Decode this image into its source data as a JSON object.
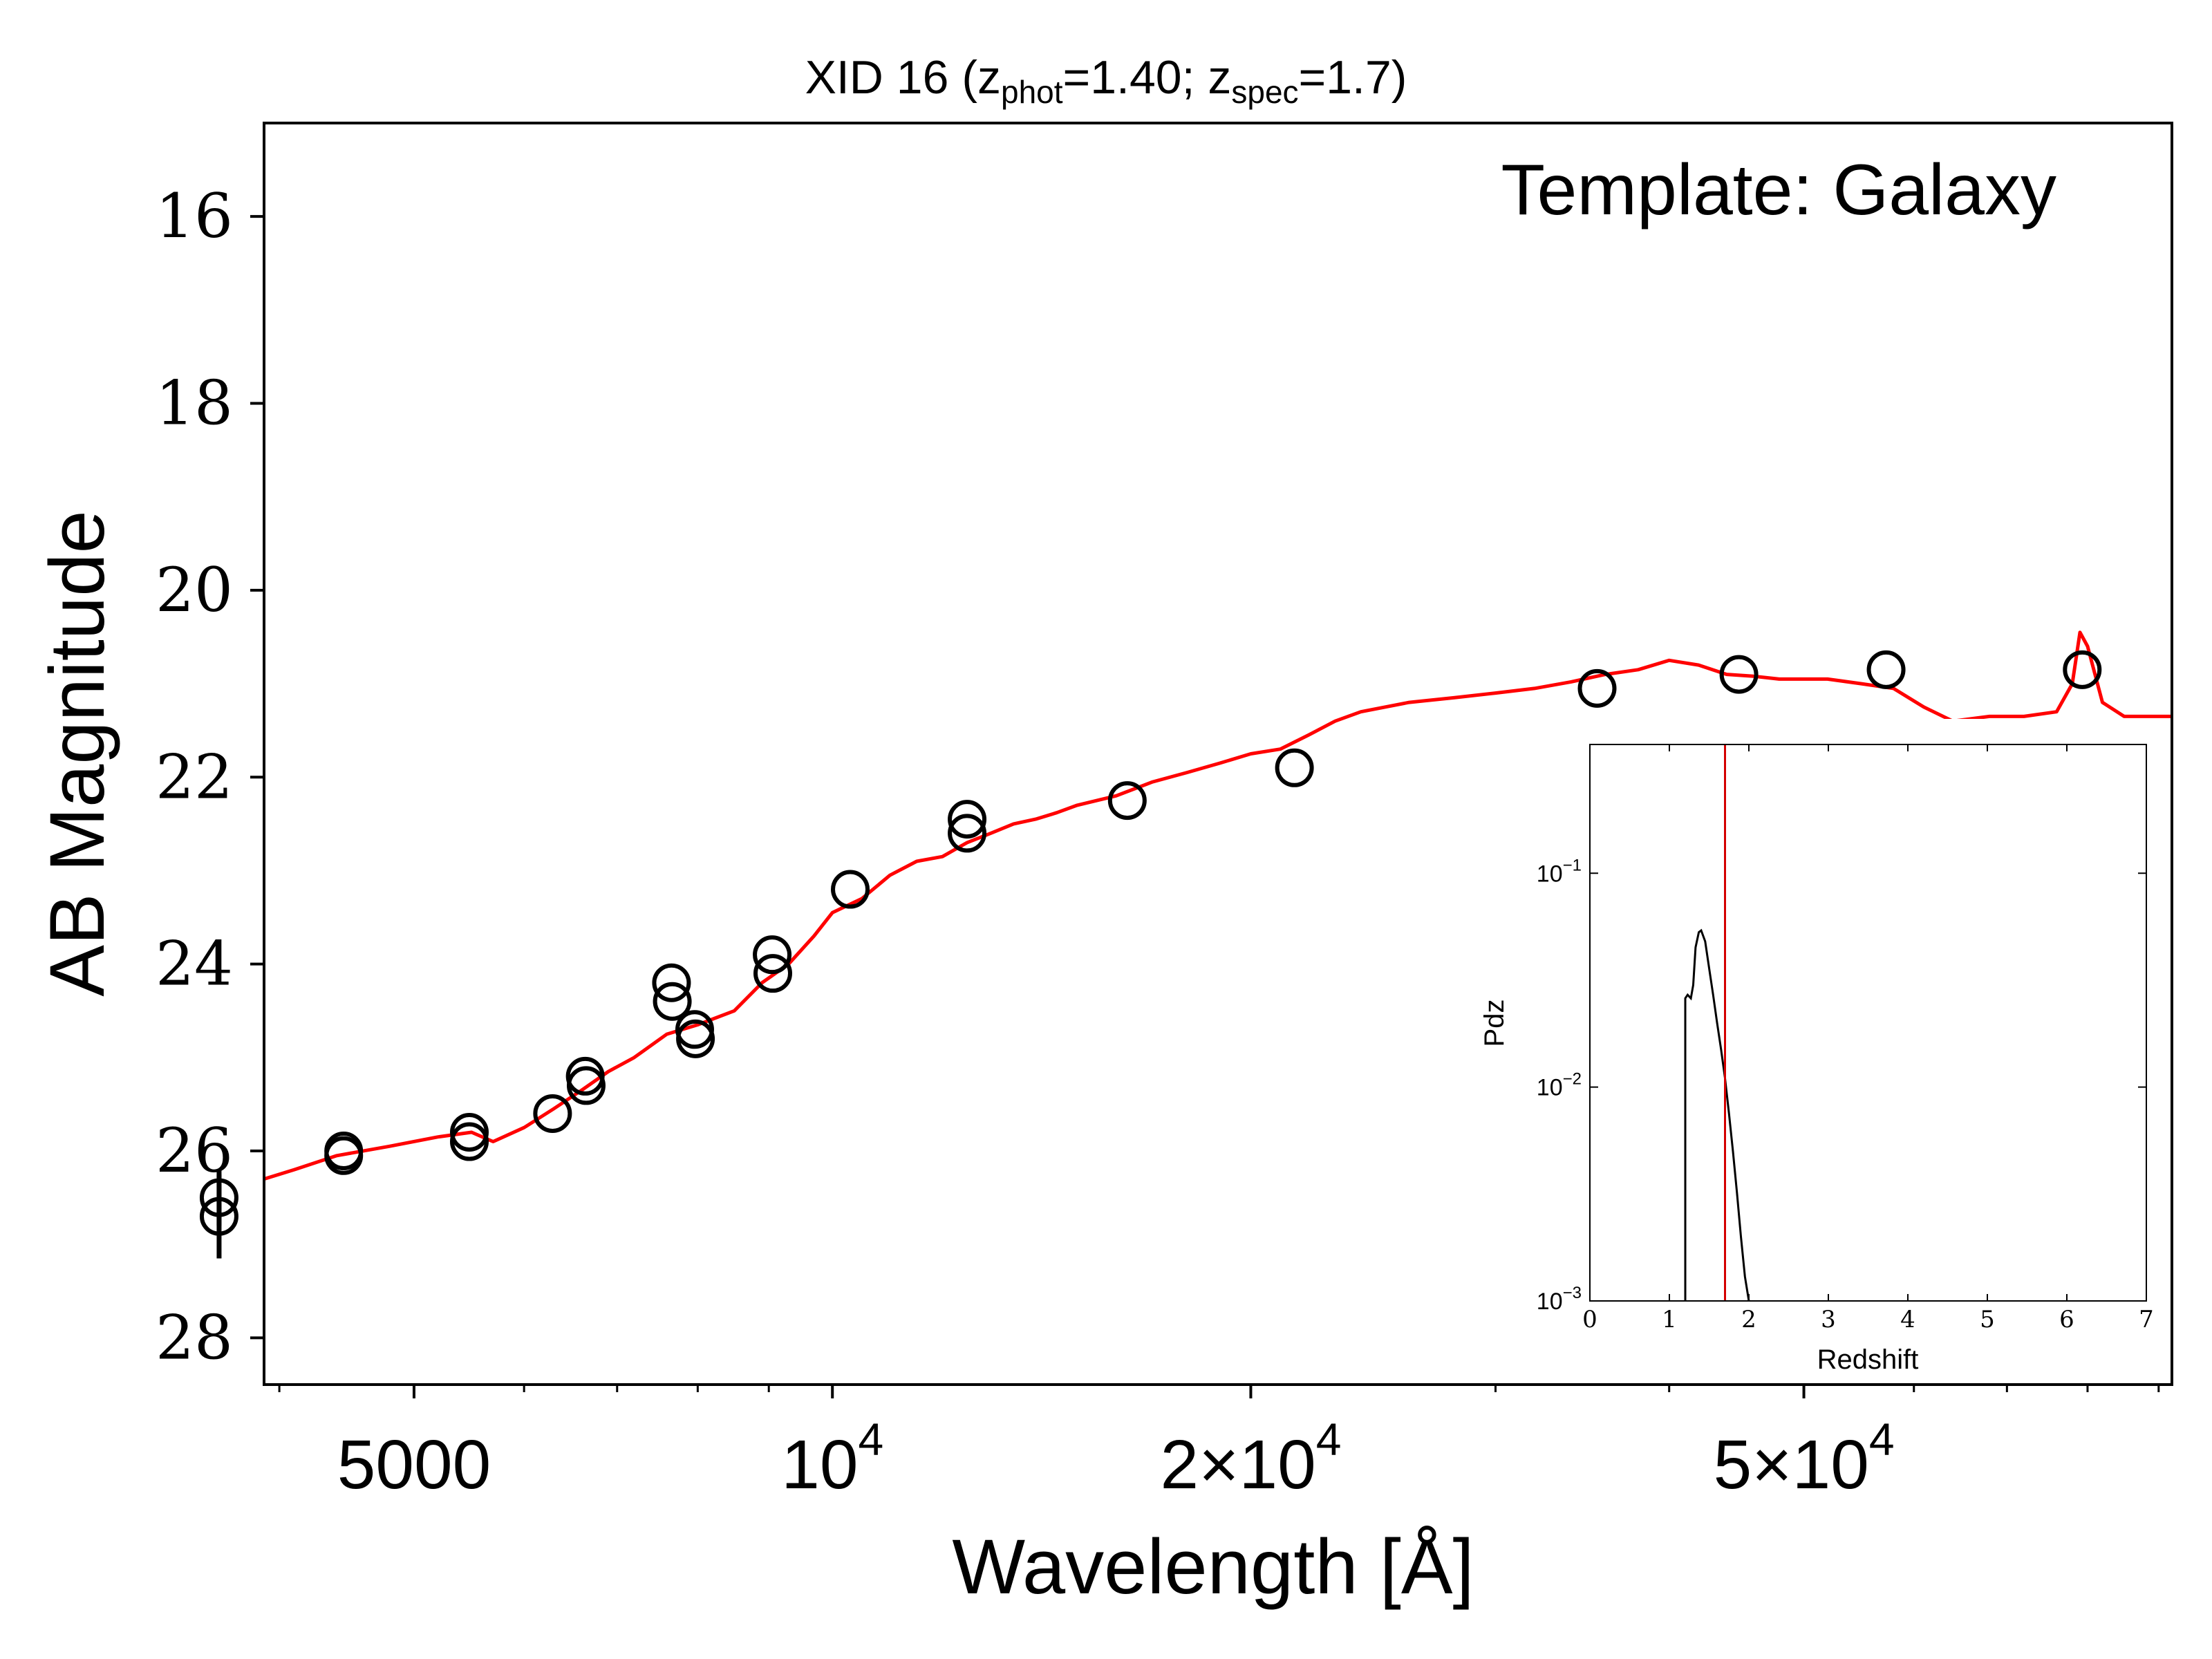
{
  "chart_data": [
    {
      "type": "scatter",
      "title_main": "XID 16 (z",
      "title_sub1": "phot",
      "title_mid": "=1.40; z",
      "title_sub2": "spec",
      "title_end": "=1.7)",
      "xlabel": "Wavelength [Å]",
      "ylabel": "AB Magnitude",
      "x_scale": "log",
      "xlim": [
        3900,
        92000
      ],
      "ylim": [
        28.5,
        15.0
      ],
      "y_inverted": true,
      "yticks": [
        "16",
        "18",
        "20",
        "22",
        "24",
        "26",
        "28"
      ],
      "xticks": [
        {
          "value": 5000,
          "label": "5000",
          "sup": ""
        },
        {
          "value": 10000,
          "label": "10",
          "sup": "4"
        },
        {
          "value": 20000,
          "label": "2×10",
          "sup": "4"
        },
        {
          "value": 50000,
          "label": "5×10",
          "sup": "4"
        }
      ],
      "annotation": "Template: Galaxy",
      "colors": {
        "template": "#ff0000",
        "points": "#000000"
      },
      "series": [
        {
          "kind": "photometry",
          "marker": "open-circle",
          "points": [
            {
              "x": 3620,
              "y": 26.7,
              "err": 0.45
            },
            {
              "x": 3620,
              "y": 26.5,
              "err": 0.3
            },
            {
              "x": 4450,
              "y": 26.05,
              "err": 0
            },
            {
              "x": 4450,
              "y": 26.0,
              "err": 0
            },
            {
              "x": 5480,
              "y": 25.9,
              "err": 0
            },
            {
              "x": 5480,
              "y": 25.8,
              "err": 0
            },
            {
              "x": 6290,
              "y": 25.6,
              "err": 0
            },
            {
              "x": 6640,
              "y": 25.2,
              "err": 0
            },
            {
              "x": 6650,
              "y": 25.3,
              "err": 0
            },
            {
              "x": 7660,
              "y": 24.2,
              "err": 0
            },
            {
              "x": 7670,
              "y": 24.4,
              "err": 0
            },
            {
              "x": 7960,
              "y": 24.7,
              "err": 0
            },
            {
              "x": 7970,
              "y": 24.8,
              "err": 0
            },
            {
              "x": 9050,
              "y": 23.9,
              "err": 0
            },
            {
              "x": 9060,
              "y": 24.1,
              "err": 0
            },
            {
              "x": 10300,
              "y": 23.2,
              "err": 0
            },
            {
              "x": 12500,
              "y": 22.45,
              "err": 0
            },
            {
              "x": 12500,
              "y": 22.6,
              "err": 0
            },
            {
              "x": 16300,
              "y": 22.25,
              "err": 0
            },
            {
              "x": 21500,
              "y": 21.9,
              "err": 0
            },
            {
              "x": 35500,
              "y": 21.05,
              "err": 0
            },
            {
              "x": 44900,
              "y": 20.9,
              "err": 0
            },
            {
              "x": 57300,
              "y": 20.85,
              "err": 0
            },
            {
              "x": 79300,
              "y": 20.85,
              "err": 0
            }
          ]
        },
        {
          "kind": "template-spectrum",
          "x": [
            3900,
            4100,
            4400,
            4800,
            5200,
            5500,
            5700,
            6000,
            6300,
            6600,
            6900,
            7200,
            7600,
            8000,
            8500,
            8900,
            9300,
            9700,
            10000,
            10500,
            11000,
            11500,
            12000,
            12500,
            13000,
            13500,
            14000,
            14500,
            15000,
            16000,
            17000,
            18000,
            19000,
            20000,
            21000,
            22000,
            23000,
            24000,
            26000,
            28000,
            30000,
            32000,
            34000,
            36000,
            38000,
            40000,
            42000,
            44000,
            46000,
            48000,
            50000,
            52000,
            55000,
            58000,
            61000,
            64000,
            68000,
            72000,
            76000,
            78000,
            79000,
            80000,
            82000,
            85000,
            88000,
            92000
          ],
          "y": [
            26.3,
            26.2,
            26.05,
            25.95,
            25.85,
            25.8,
            25.9,
            25.75,
            25.55,
            25.35,
            25.15,
            25.0,
            24.75,
            24.65,
            24.5,
            24.2,
            24.0,
            23.7,
            23.45,
            23.3,
            23.05,
            22.9,
            22.85,
            22.7,
            22.6,
            22.5,
            22.45,
            22.38,
            22.3,
            22.2,
            22.05,
            21.95,
            21.85,
            21.75,
            21.7,
            21.55,
            21.4,
            21.3,
            21.2,
            21.15,
            21.1,
            21.05,
            20.98,
            20.9,
            20.85,
            20.75,
            20.8,
            20.9,
            20.92,
            20.95,
            20.95,
            20.95,
            21.0,
            21.05,
            21.25,
            21.4,
            21.35,
            21.35,
            21.3,
            21.0,
            20.45,
            20.6,
            21.2,
            21.35,
            21.35,
            21.35
          ]
        }
      ]
    },
    {
      "type": "line",
      "xlabel": "Redshift",
      "ylabel": "Pdz",
      "y_scale": "log",
      "xlim": [
        0,
        7
      ],
      "ylim": [
        0.001,
        0.4
      ],
      "xticks": [
        "0",
        "1",
        "2",
        "3",
        "4",
        "5",
        "6",
        "7"
      ],
      "yticks": [
        {
          "value": 0.1,
          "base": "10",
          "exp": "−1"
        },
        {
          "value": 0.01,
          "base": "10",
          "exp": "−2"
        },
        {
          "value": 0.001,
          "base": "10",
          "exp": "−3"
        }
      ],
      "zspec": 1.7,
      "colors": {
        "pdz": "#000000",
        "zspec": "#d40000"
      },
      "series": [
        {
          "name": "",
          "x": [
            1.2,
            1.2,
            1.23,
            1.27,
            1.3,
            1.33,
            1.37,
            1.4,
            1.45,
            1.5,
            1.55,
            1.6,
            1.65,
            1.7,
            1.75,
            1.8,
            1.85,
            1.9,
            1.95,
            2.0
          ],
          "y": [
            0.001,
            0.026,
            0.027,
            0.026,
            0.03,
            0.045,
            0.053,
            0.054,
            0.048,
            0.036,
            0.027,
            0.02,
            0.015,
            0.011,
            0.0075,
            0.005,
            0.0032,
            0.002,
            0.0013,
            0.001
          ]
        }
      ]
    }
  ]
}
